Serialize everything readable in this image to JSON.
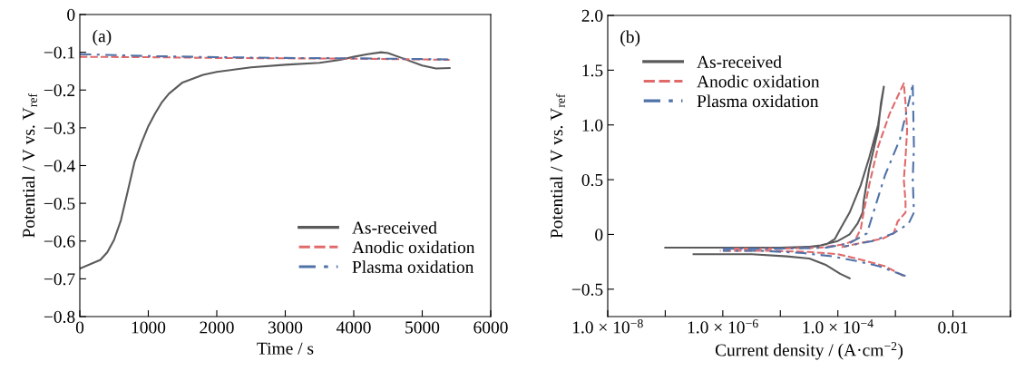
{
  "chart_data": [
    {
      "type": "line",
      "xlabel": "Time / s",
      "ylabel": "Potential / V vs. V$_{ref}$",
      "annotations": [
        "(a)"
      ],
      "xlim": [
        0,
        6000
      ],
      "xticks": [
        0,
        1000,
        2000,
        3000,
        4000,
        5000,
        6000
      ],
      "ylim": [
        -0.8,
        0
      ],
      "yticks": [
        {
          "value": -0.8,
          "label": "−0.8"
        },
        {
          "value": -0.7,
          "label": "−0.7"
        },
        {
          "value": -0.6,
          "label": "−0.6"
        },
        {
          "value": -0.5,
          "label": "−0.5"
        },
        {
          "value": -0.4,
          "label": "−0.4"
        },
        {
          "value": -0.3,
          "label": "−0.3"
        },
        {
          "value": -0.2,
          "label": "−0.2"
        },
        {
          "value": -0.1,
          "label": "−0.1"
        },
        0
      ],
      "legend": "lower right",
      "series": [
        {
          "name": "As-received",
          "color": "#5a5a5a",
          "line_style": "solid",
          "x": [
            0,
            300,
            400,
            500,
            600,
            700,
            800,
            900,
            1000,
            1100,
            1200,
            1300,
            1500,
            1800,
            2000,
            2500,
            3000,
            3500,
            3800,
            4000,
            4200,
            4400,
            4500,
            4700,
            5000,
            5200,
            5400
          ],
          "values": [
            -0.673,
            -0.65,
            -0.63,
            -0.597,
            -0.545,
            -0.468,
            -0.39,
            -0.34,
            -0.296,
            -0.262,
            -0.232,
            -0.21,
            -0.18,
            -0.16,
            -0.152,
            -0.14,
            -0.133,
            -0.128,
            -0.12,
            -0.112,
            -0.105,
            -0.1,
            -0.102,
            -0.115,
            -0.135,
            -0.143,
            -0.142
          ]
        },
        {
          "name": "Anodic oxidation",
          "color": "#e06a6a",
          "line_style": "dashed",
          "x": [
            0,
            1000,
            2000,
            3000,
            4000,
            5000,
            5400
          ],
          "values": [
            -0.112,
            -0.113,
            -0.115,
            -0.116,
            -0.117,
            -0.119,
            -0.12
          ]
        },
        {
          "name": "Plasma oxidation",
          "color": "#4f72a8",
          "line_style": "dashdot",
          "x": [
            0,
            1000,
            2000,
            3000,
            4000,
            5000,
            5400
          ],
          "values": [
            -0.105,
            -0.11,
            -0.113,
            -0.115,
            -0.116,
            -0.118,
            -0.119
          ]
        }
      ]
    },
    {
      "type": "line",
      "xlabel": "Current density / (A·cm$^{−2}$)",
      "ylabel": "Potential / V vs. V$_{ref}$",
      "annotations": [
        "(b)"
      ],
      "log": "x",
      "xlim": [
        1e-08,
        0.1
      ],
      "xticks": [
        {
          "value": 1e-08,
          "label": "1.0 × 10$^{−8}$"
        },
        {
          "value": 1e-07,
          "label": null
        },
        {
          "value": 1e-06,
          "label": "1.0 × 10$^{−6}$"
        },
        {
          "value": 1e-05,
          "label": null
        },
        {
          "value": 0.0001,
          "label": "1.0 × 10$^{−4}$"
        },
        {
          "value": 0.001,
          "label": null
        },
        {
          "value": 0.01,
          "label": "0.01"
        },
        {
          "value": 0.1,
          "label": null
        }
      ],
      "ylim": [
        -0.75,
        2.0
      ],
      "yticks": [
        {
          "value": -0.5,
          "label": "−0.5"
        },
        0,
        0.5,
        {
          "value": 1,
          "label": "1.0"
        },
        1.5,
        {
          "value": 2,
          "label": "2.0"
        }
      ],
      "legend": "upper left",
      "series": [
        {
          "name": "As-received",
          "color": "#5a5a5a",
          "line_style": "solid",
          "x": [
            0.00016,
            0.00011,
            6.3e-05,
            3.2e-05,
            1.3e-05,
            3.2e-06,
            3.1e-07,
            null,
            1e-07,
            1e-06,
            1e-05,
            4e-05,
            6.3e-05,
            8.9e-05,
            0.00011,
            0.00016,
            0.00025,
            0.00035,
            0.0005,
            0.00063,
            0.00056,
            0.0005,
            0.00035,
            0.00028,
            0.00027,
            0.00022,
            0.00016,
            0.0001,
            5e-05,
            2.5e-05
          ],
          "values": [
            -0.4,
            -0.36,
            -0.28,
            -0.22,
            -0.2,
            -0.18,
            -0.18,
            null,
            -0.12,
            -0.12,
            -0.12,
            -0.11,
            -0.09,
            -0.04,
            0.05,
            0.2,
            0.45,
            0.7,
            1.0,
            1.35,
            1.2,
            0.95,
            0.6,
            0.3,
            0.2,
            0.1,
            0.0,
            -0.06,
            -0.1,
            -0.12
          ]
        },
        {
          "name": "Anodic oxidation",
          "color": "#e06a6a",
          "line_style": "dashed",
          "x": [
            0.0014,
            0.00066,
            0.00025,
            0.0001,
            3.2e-05,
            6.3e-06,
            8.9e-07,
            null,
            1e-06,
            1e-05,
            5e-05,
            0.00013,
            0.0002,
            0.00025,
            0.00028,
            0.00035,
            0.0005,
            0.00079,
            0.0014,
            0.0015,
            0.0016,
            0.0015,
            0.0014,
            0.0015,
            0.0015,
            0.0011,
            0.00093,
            0.00059,
            0.00029,
            0.00011
          ],
          "values": [
            -0.38,
            -0.29,
            -0.23,
            -0.18,
            -0.16,
            -0.15,
            -0.15,
            null,
            -0.13,
            -0.13,
            -0.12,
            -0.09,
            -0.05,
            0.05,
            0.2,
            0.45,
            0.8,
            1.1,
            1.38,
            1.2,
            0.95,
            0.7,
            0.5,
            0.3,
            0.2,
            0.12,
            0.01,
            -0.04,
            -0.07,
            -0.12
          ]
        },
        {
          "name": "Plasma oxidation",
          "color": "#4f72a8",
          "line_style": "dashdot",
          "x": [
            0.0015,
            0.00052,
            0.0002,
            7.9e-05,
            2.5e-05,
            5e-06,
            1e-06,
            null,
            1e-06,
            1e-05,
            6.3e-05,
            0.00016,
            0.00032,
            0.00066,
            0.0012,
            0.0019,
            0.002,
            0.0021,
            0.002,
            0.0021,
            0.0017,
            0.00093,
            0.0004,
            0.00013
          ],
          "values": [
            -0.38,
            -0.29,
            -0.24,
            -0.2,
            -0.17,
            -0.15,
            -0.15,
            null,
            -0.13,
            -0.13,
            -0.12,
            -0.08,
            0.01,
            0.54,
            0.87,
            1.31,
            1.38,
            0.8,
            0.51,
            0.2,
            0.1,
            0.01,
            -0.06,
            -0.11
          ]
        }
      ]
    }
  ]
}
